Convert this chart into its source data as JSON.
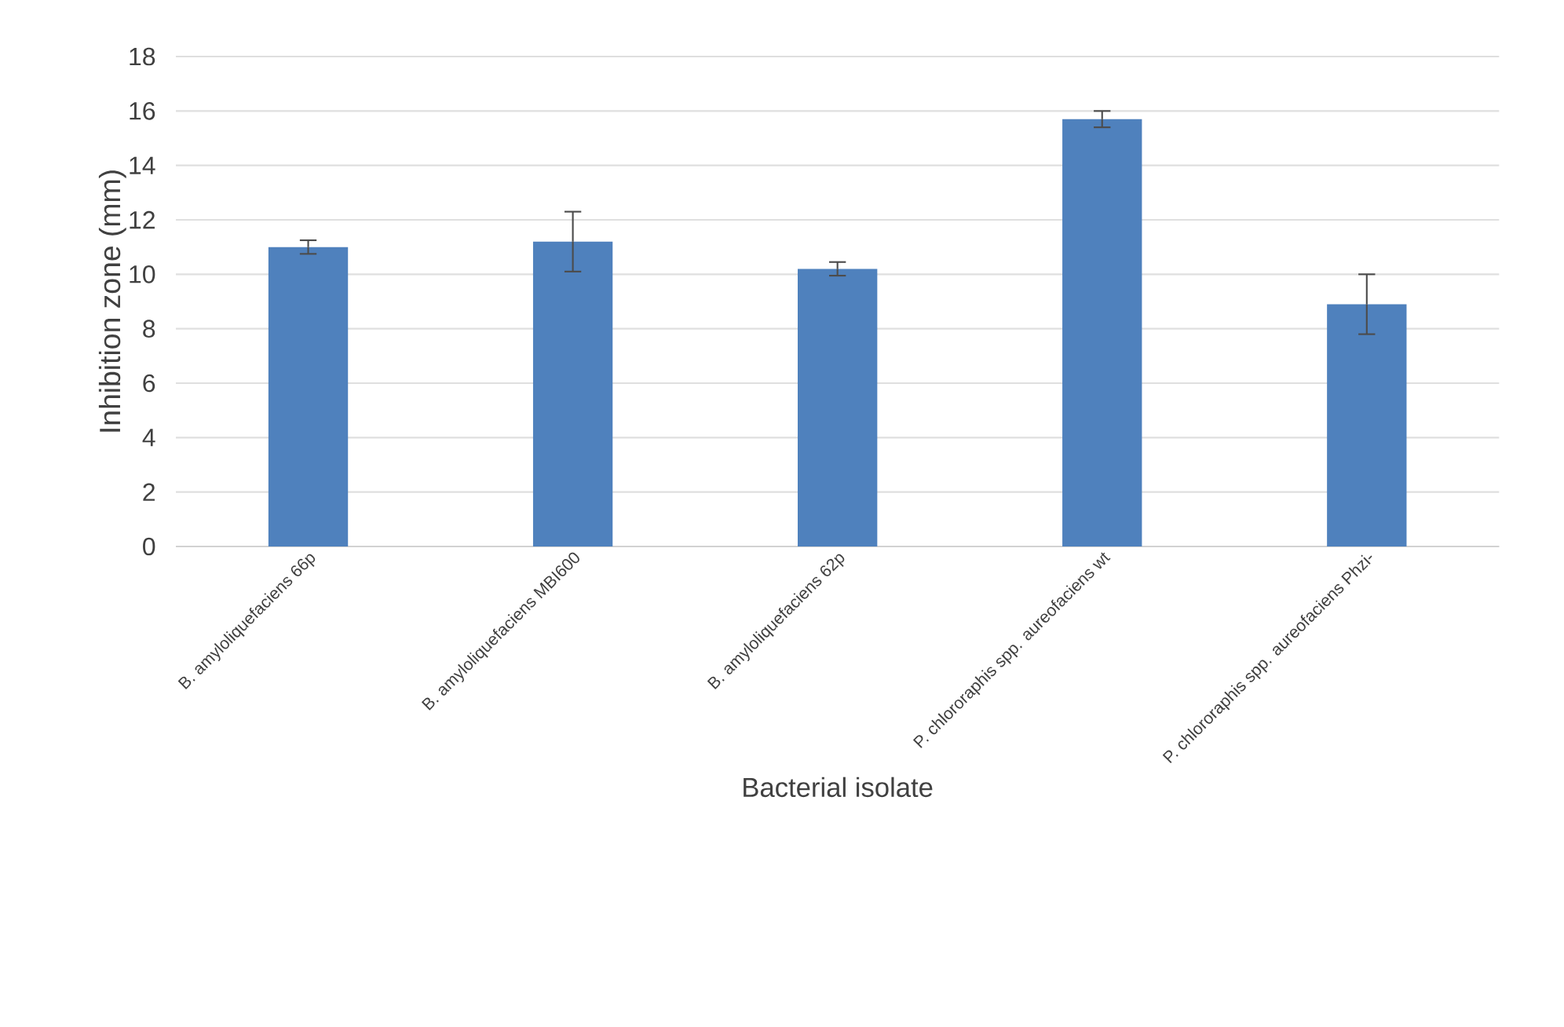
{
  "chart_data": {
    "type": "bar",
    "xlabel": "Bacterial isolate",
    "ylabel": "Inhibition zone (mm)",
    "categories": [
      "B. amyloliquefaciens 66p",
      "B. amyloliquefaciens MBI600",
      "B. amyloliquefaciens 62p",
      "P. chlororaphis spp. aureofaciens wt",
      "P. chlororaphis spp. aureofaciens Phzi-"
    ],
    "values": [
      11.0,
      11.2,
      10.2,
      15.7,
      8.9
    ],
    "errors": [
      0.25,
      1.1,
      0.25,
      0.3,
      1.1
    ],
    "color": "#4f81bd",
    "ylim": [
      0,
      18
    ],
    "yticks": [
      0,
      2,
      4,
      6,
      8,
      10,
      12,
      14,
      16,
      18
    ],
    "grid": "y"
  }
}
